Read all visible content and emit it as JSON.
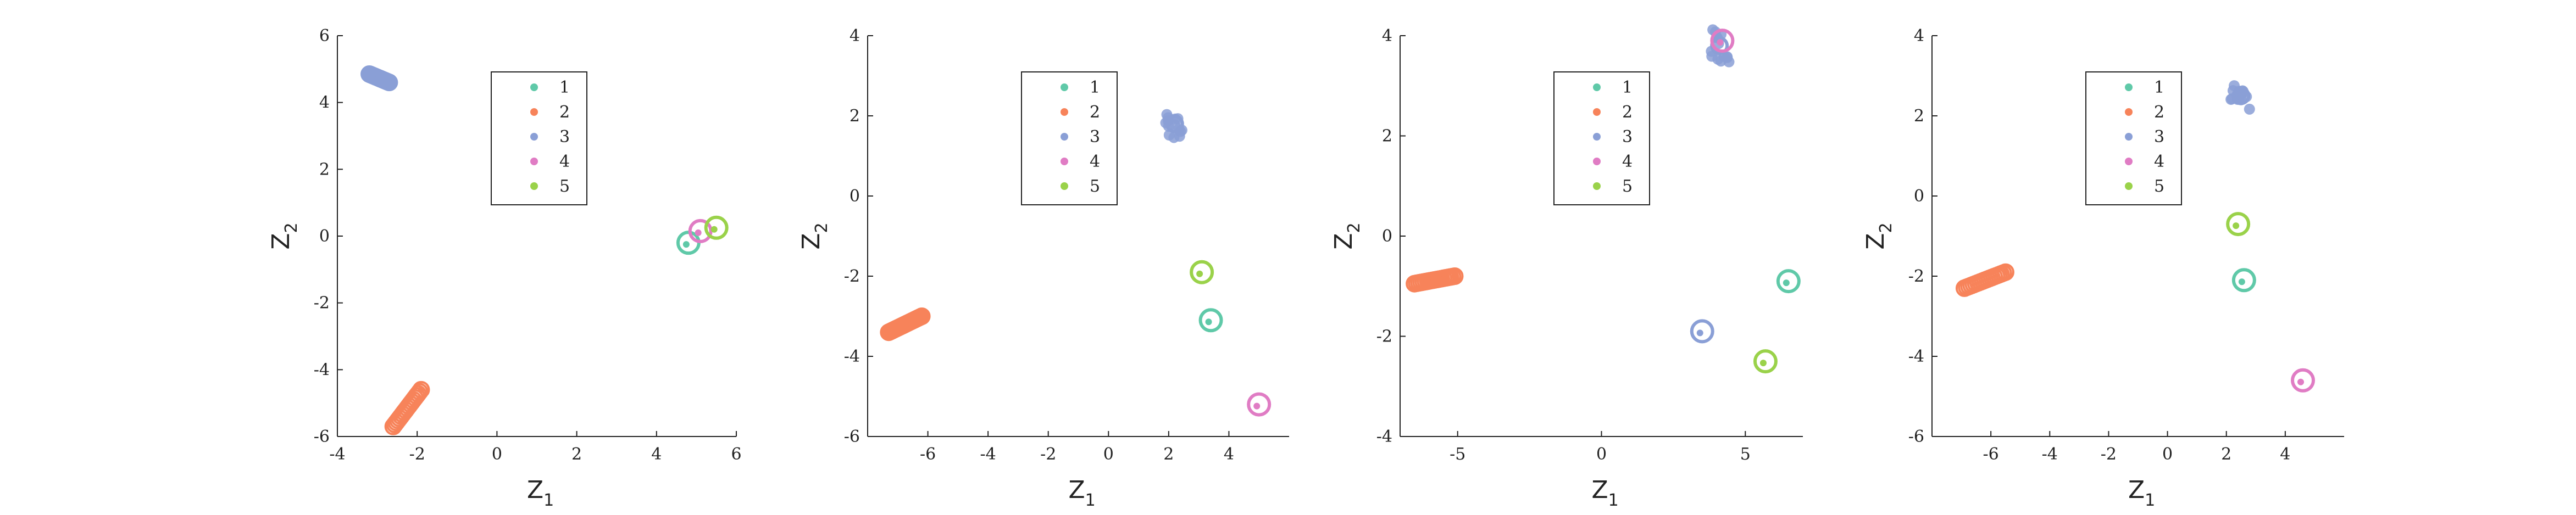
{
  "colors": {
    "1": "#5fc9a8",
    "2": "#f7835a",
    "3": "#8a9fd6",
    "4": "#e07cc4",
    "5": "#9ad24a"
  },
  "legend_labels": [
    "1",
    "2",
    "3",
    "4",
    "5"
  ],
  "chart_data": [
    {
      "type": "scatter",
      "xlabel_main": "Z",
      "xlabel_sub": "1",
      "ylabel_main": "Z",
      "ylabel_sub": "2",
      "xlim": [
        -4,
        6
      ],
      "ylim": [
        -6,
        6
      ],
      "xticks": [
        -4,
        -2,
        0,
        2,
        4,
        6
      ],
      "xticklabels": [
        "-4",
        "-2",
        "0",
        "2",
        "4",
        "6"
      ],
      "yticks": [
        -6,
        -4,
        -2,
        0,
        2,
        4,
        6
      ],
      "yticklabels": [
        "-6",
        "-4",
        "-2",
        "0",
        "2",
        "4",
        "6"
      ],
      "legend": {
        "position": "upper-middle"
      },
      "clusters": [
        {
          "label": "3",
          "center": [
            -2.7,
            4.6
          ],
          "kind": "smear",
          "to": [
            -3.2,
            4.85
          ]
        },
        {
          "label": "2",
          "center": [
            -2.4,
            -5.2
          ],
          "kind": "smear",
          "to": [
            -1.9,
            -4.6
          ],
          "from": [
            -2.6,
            -5.7
          ]
        },
        {
          "label": "1",
          "center": [
            4.8,
            -0.2
          ],
          "kind": "ring"
        },
        {
          "label": "4",
          "center": [
            5.1,
            0.15
          ],
          "kind": "ring"
        },
        {
          "label": "5",
          "center": [
            5.5,
            0.25
          ],
          "kind": "ring"
        }
      ]
    },
    {
      "type": "scatter",
      "xlabel_main": "Z",
      "xlabel_sub": "1",
      "ylabel_main": "Z",
      "ylabel_sub": "2",
      "xlim": [
        -8,
        6
      ],
      "ylim": [
        -6,
        4
      ],
      "xticks": [
        -6,
        -4,
        -2,
        0,
        2,
        4
      ],
      "xticklabels": [
        "-6",
        "-4",
        "-2",
        "0",
        "2",
        "4"
      ],
      "yticks": [
        -6,
        -4,
        -2,
        0,
        2,
        4
      ],
      "yticklabels": [
        "-6",
        "-4",
        "-2",
        "0",
        "2",
        "4"
      ],
      "legend": {
        "position": "upper-middle"
      },
      "clusters": [
        {
          "label": "3",
          "center": [
            2.2,
            1.8
          ],
          "kind": "blob"
        },
        {
          "label": "2",
          "center": [
            -6.8,
            -3.2
          ],
          "kind": "smear",
          "from": [
            -7.3,
            -3.4
          ],
          "to": [
            -6.2,
            -3.0
          ]
        },
        {
          "label": "5",
          "center": [
            3.1,
            -1.9
          ],
          "kind": "ring"
        },
        {
          "label": "1",
          "center": [
            3.4,
            -3.1
          ],
          "kind": "ring"
        },
        {
          "label": "4",
          "center": [
            5.0,
            -5.2
          ],
          "kind": "ring"
        }
      ]
    },
    {
      "type": "scatter",
      "xlabel_main": "Z",
      "xlabel_sub": "1",
      "ylabel_main": "Z",
      "ylabel_sub": "2",
      "xlim": [
        -7,
        7
      ],
      "ylim": [
        -4,
        4
      ],
      "xticks": [
        -5,
        0,
        5
      ],
      "xticklabels": [
        "-5",
        "0",
        "5"
      ],
      "yticks": [
        -4,
        -2,
        0,
        2,
        4
      ],
      "yticklabels": [
        "-4",
        "-2",
        "0",
        "2",
        "4"
      ],
      "legend": {
        "position": "upper-middle"
      },
      "clusters": [
        {
          "label": "3",
          "center": [
            4.1,
            3.8
          ],
          "kind": "blob"
        },
        {
          "label": "4",
          "center": [
            4.2,
            3.9
          ],
          "kind": "ring"
        },
        {
          "label": "2",
          "center": [
            -5.8,
            -0.9
          ],
          "kind": "smear",
          "from": [
            -6.5,
            -0.95
          ],
          "to": [
            -5.1,
            -0.8
          ]
        },
        {
          "label": "3",
          "center": [
            3.5,
            -1.9
          ],
          "kind": "ring"
        },
        {
          "label": "1",
          "center": [
            6.5,
            -0.9
          ],
          "kind": "ring"
        },
        {
          "label": "5",
          "center": [
            5.7,
            -2.5
          ],
          "kind": "ring"
        }
      ]
    },
    {
      "type": "scatter",
      "xlabel_main": "Z",
      "xlabel_sub": "1",
      "ylabel_main": "Z",
      "ylabel_sub": "2",
      "xlim": [
        -8,
        6
      ],
      "ylim": [
        -6,
        4
      ],
      "xticks": [
        -6,
        -4,
        -2,
        0,
        2,
        4
      ],
      "xticklabels": [
        "-6",
        "-4",
        "-2",
        "0",
        "2",
        "4"
      ],
      "yticks": [
        -6,
        -4,
        -2,
        0,
        2,
        4
      ],
      "yticklabels": [
        "-6",
        "-4",
        "-2",
        "0",
        "2",
        "4"
      ],
      "legend": {
        "position": "upper-middle"
      },
      "clusters": [
        {
          "label": "3",
          "center": [
            2.5,
            2.5
          ],
          "kind": "blob"
        },
        {
          "label": "2",
          "center": [
            -6.2,
            -2.1
          ],
          "kind": "smear",
          "from": [
            -6.9,
            -2.3
          ],
          "to": [
            -5.5,
            -1.9
          ]
        },
        {
          "label": "5",
          "center": [
            2.4,
            -0.7
          ],
          "kind": "ring"
        },
        {
          "label": "1",
          "center": [
            2.6,
            -2.1
          ],
          "kind": "ring"
        },
        {
          "label": "4",
          "center": [
            4.6,
            -4.6
          ],
          "kind": "ring"
        }
      ]
    }
  ]
}
